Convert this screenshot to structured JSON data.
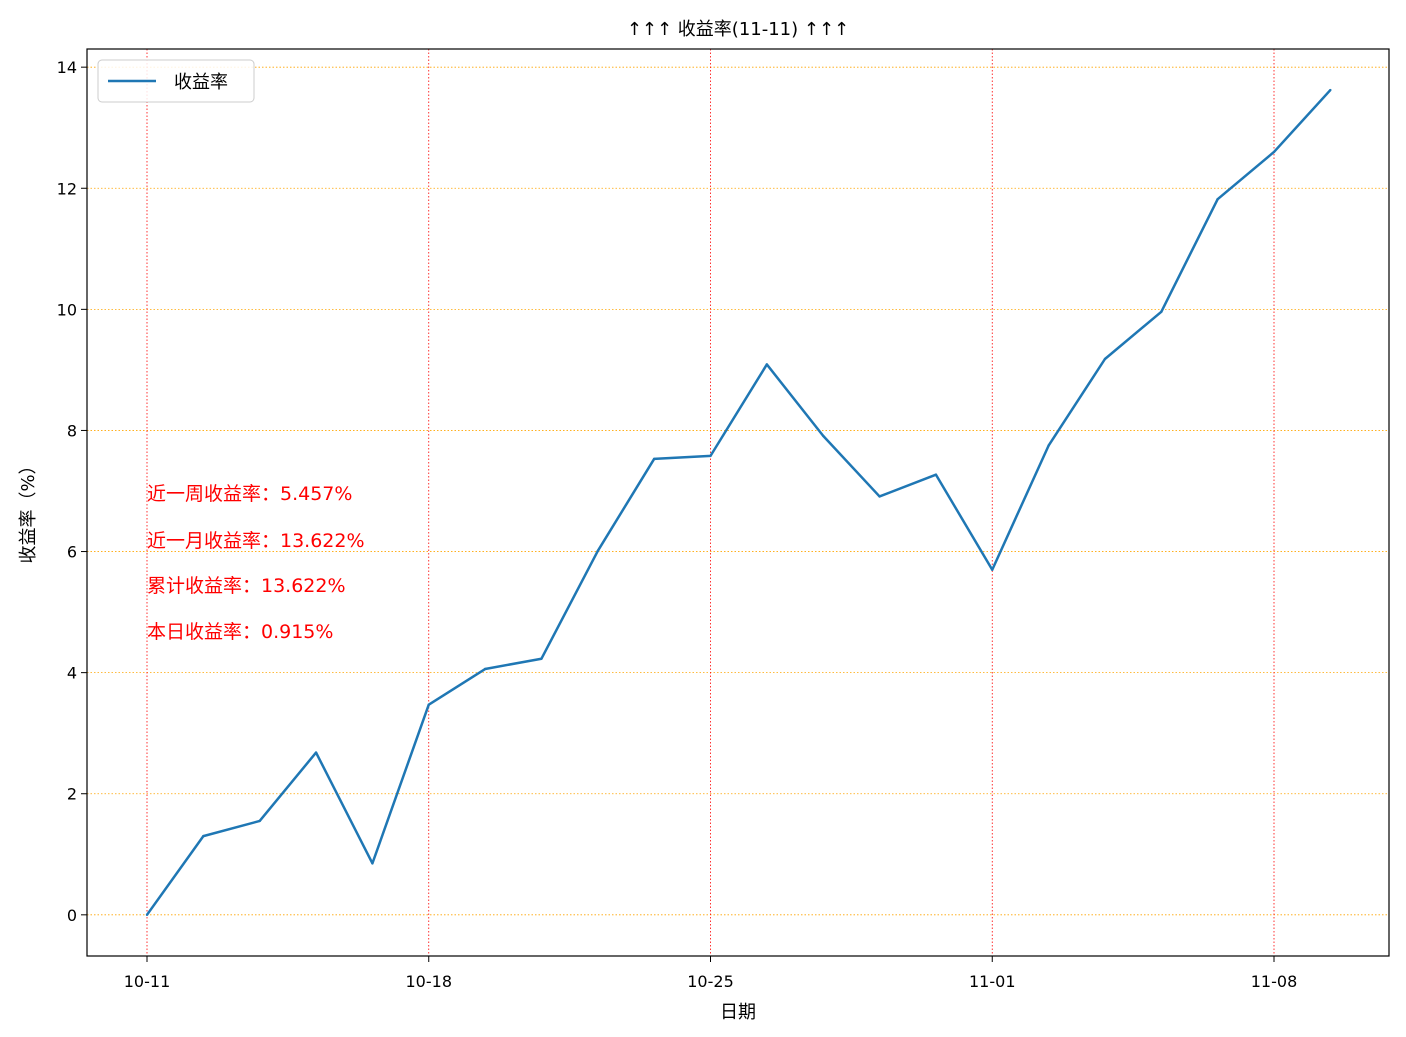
{
  "chart_data": {
    "type": "line",
    "title": "↑↑↑ 收益率(11-11) ↑↑↑",
    "xlabel": "日期",
    "ylabel": "收益率（%）",
    "x": [
      "10-11",
      "10-12",
      "10-13",
      "10-14",
      "10-15",
      "10-18",
      "10-19",
      "10-20",
      "10-21",
      "10-22",
      "10-25",
      "10-26",
      "10-27",
      "10-28",
      "10-29",
      "11-01",
      "11-02",
      "11-03",
      "11-04",
      "11-05",
      "11-08",
      "11-09"
    ],
    "x_day_index": [
      0,
      1,
      2,
      3,
      4,
      5,
      6,
      7,
      8,
      9,
      10,
      11,
      12,
      13,
      14,
      15,
      16,
      17,
      18,
      19,
      20,
      21
    ],
    "series": [
      {
        "name": "收益率",
        "color": "#1f77b4",
        "values": [
          0.0,
          1.3,
          1.55,
          2.68,
          0.85,
          3.47,
          4.06,
          4.23,
          6.01,
          7.53,
          7.58,
          9.09,
          7.91,
          6.91,
          7.27,
          5.7,
          7.75,
          9.18,
          9.96,
          11.82,
          12.6,
          13.622
        ]
      }
    ],
    "xticks": [
      {
        "label": "10-11",
        "index": 0
      },
      {
        "label": "10-18",
        "index": 5
      },
      {
        "label": "10-25",
        "index": 10
      },
      {
        "label": "11-01",
        "index": 15
      },
      {
        "label": "11-08",
        "index": 20
      }
    ],
    "yticks": [
      0,
      2,
      4,
      6,
      8,
      10,
      12,
      14
    ],
    "ylim": [
      -0.68,
      14.3
    ],
    "grid": {
      "x": true,
      "y": true,
      "x_color": "#ff0000",
      "y_color": "#ffa500"
    },
    "legend": {
      "position": "top-left",
      "entries": [
        "收益率"
      ]
    },
    "annotations": [
      "近一周收益率：5.457%",
      "近一月收益率：13.622%",
      "累计收益率：13.622%",
      "本日收益率：0.915%"
    ]
  }
}
